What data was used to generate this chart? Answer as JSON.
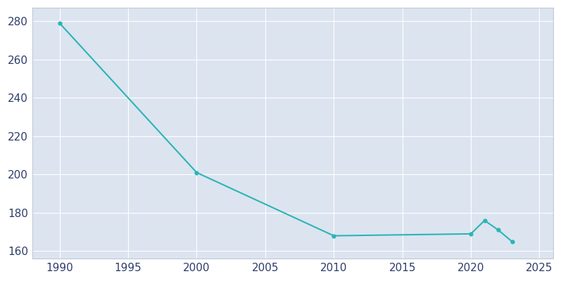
{
  "years": [
    1990,
    2000,
    2010,
    2020,
    2021,
    2022,
    2023
  ],
  "population": [
    279,
    201,
    168,
    169,
    176,
    171,
    165
  ],
  "line_color": "#2ab5b5",
  "marker": "o",
  "marker_size": 3.5,
  "line_width": 1.5,
  "xlim": [
    1988,
    2026
  ],
  "ylim": [
    156,
    287
  ],
  "xticks": [
    1990,
    1995,
    2000,
    2005,
    2010,
    2015,
    2020,
    2025
  ],
  "yticks": [
    160,
    180,
    200,
    220,
    240,
    260,
    280
  ],
  "background_color": "#ffffff",
  "axes_background_color": "#dce4f0",
  "grid_color": "#ffffff",
  "tick_label_color": "#2e3d6b",
  "tick_label_fontsize": 11,
  "spine_color": "#c0c8d8"
}
